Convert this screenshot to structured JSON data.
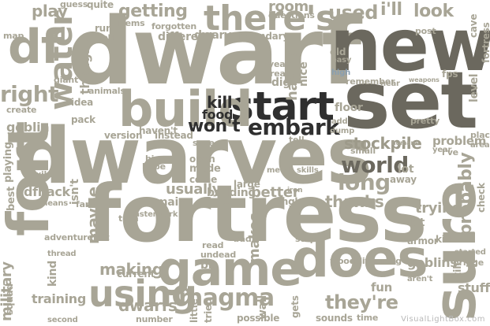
{
  "footer": "VisualLightBox.com",
  "words": {
    "dwarf": "dwarf",
    "new": "new",
    "set": "set",
    "dwarves": "dwarves",
    "fortress": "fortress",
    "fort": "fort",
    "sure": "sure",
    "game": "game",
    "does": "does",
    "start": "start",
    "build": "build",
    "water": "water",
    "df": "df",
    "theres": "there's",
    "using": "using",
    "magma": "magma",
    "world": "world",
    "long": "long",
    "better": "better",
    "embark": "embark",
    "wont": "won't",
    "kill": "kill",
    "food": "food",
    "stockpile": "stockpile",
    "thanks": "thanks",
    "probably": "probably",
    "theyre": "they're",
    "dwarfs": "dwarfs",
    "training": "training",
    "military": "military",
    "making": "making",
    "used": "used",
    "look": "look",
    "ill": "i'll",
    "getting": "getting",
    "right": "right",
    "room": "room",
    "goblin": "goblin",
    "goblins": "goblins",
    "usually": "usually",
    "walls": "walls",
    "building": "building",
    "mode": "mode",
    "open": "open",
    "come": "come",
    "floor": "floor",
    "dfhack": "dfhack",
    "play": "play",
    "idea": "idea",
    "maybe": "maybe",
    "wall": "wall",
    "tried": "tried",
    "little": "little",
    "possible": "possible",
    "stuff": "stuff",
    "fun": "fun",
    "having": "having",
    "yeah": "yeah",
    "nice": "nice",
    "dig": "dig",
    "real": "real",
    "old": "old",
    "high": "high",
    "easy": "easy",
    "instead": "instead",
    "different": "different",
    "legendary": "legendary",
    "questions": "questions",
    "problem": "problem",
    "level": "level",
    "armor": "armor",
    "killed": "killed",
    "trying": "trying",
    "let": "let",
    "main": "main",
    "start2": "started",
    "bridge": "bridge",
    "makes": "makes",
    "stop": "stop",
    "bad": "bad",
    "single": "single",
    "large": "large",
    "version": "version",
    "current": "current",
    "kind": "kind",
    "squad": "squad",
    "number": "number",
    "second": "second",
    "sounds": "sounds",
    "time": "time",
    "adventure": "adventure",
    "playing": "playing",
    "best": "best",
    "save": "save",
    "tell": "tell",
    "remember": "remember",
    "near": "near",
    "weapons": "weapons",
    "fps": "fps",
    "cave": "cave",
    "check": "check",
    "gets": "gets",
    "edit": "edit",
    "running": "running",
    "wood": "wood",
    "hope": "hope",
    "big": "big",
    "havent": "haven't",
    "thought": "thought",
    "pretty": "pretty",
    "post": "post",
    "guess": "guess",
    "quite": "quite",
    "items": "items",
    "run": "run",
    "looking": "looking",
    "forgotten": "forgotten",
    "dwarven": "dwarven",
    "animals": "animals",
    "create": "create",
    "giant": "giant",
    "map": "map",
    "create2": "pack",
    "far": "far",
    "isnt": "isn't",
    "wiki": "wiki",
    "means": "means",
    "turn": "turn",
    "masterwork": "masterwork",
    "undead": "undead",
    "read": "read",
    "bit": "bit",
    "thread": "thread",
    "left": "left",
    "arent": "aren't",
    "lot": "lot",
    "away": "away",
    "ive": "i've",
    "year": "year",
    "place": "place",
    "area": "area",
    "fortress2": "fortress",
    "dump": "dump",
    "add": "add",
    "small": "small",
    "tile": "tile",
    "humans": "humans",
    "skills": "skills",
    "metal": "metal",
    "iron": "iron"
  }
}
